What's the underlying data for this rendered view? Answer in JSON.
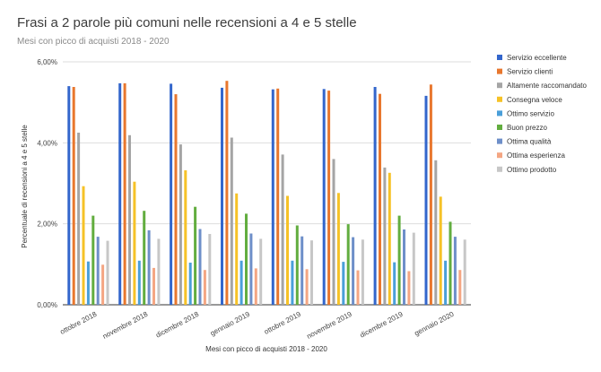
{
  "chart_data": {
    "type": "bar",
    "title": "Frasi a 2 parole più comuni nelle recensioni a 4 e 5 stelle",
    "subtitle": "Mesi con picco di acquisti 2018 - 2020",
    "xlabel": "Mesi con picco di acquisti 2018 - 2020",
    "ylabel": "Percentuale di recensioni a 4 e 5 stelle",
    "ylim": [
      0,
      6
    ],
    "yticks": [
      "0,00%",
      "2,00%",
      "4,00%",
      "6,00%"
    ],
    "grid": true,
    "legend_position": "right",
    "categories": [
      "ottobre 2018",
      "novembre 2018",
      "dicembre 2018",
      "gennaio 2019",
      "ottobre 2019",
      "novembre 2019",
      "dicembre 2019",
      "gennaio 2020"
    ],
    "series": [
      {
        "name": "Servizio eccellente",
        "color": "#3366cc",
        "values": [
          5.4,
          5.47,
          5.46,
          5.36,
          5.32,
          5.33,
          5.38,
          5.16
        ]
      },
      {
        "name": "Servizio clienti",
        "color": "#e8772e",
        "values": [
          5.38,
          5.47,
          5.2,
          5.53,
          5.34,
          5.29,
          5.21,
          5.44
        ]
      },
      {
        "name": "Altamente raccomandato",
        "color": "#a5a5a5",
        "values": [
          4.25,
          4.19,
          3.96,
          4.13,
          3.71,
          3.6,
          3.39,
          3.57
        ]
      },
      {
        "name": "Consegna veloce",
        "color": "#f6c227",
        "values": [
          2.93,
          3.04,
          3.32,
          2.75,
          2.69,
          2.76,
          3.26,
          2.67
        ]
      },
      {
        "name": "Ottimo servizio",
        "color": "#4a9fd9",
        "values": [
          1.07,
          1.09,
          1.04,
          1.09,
          1.09,
          1.06,
          1.05,
          1.09
        ]
      },
      {
        "name": "Buon prezzo",
        "color": "#62ad3f",
        "values": [
          2.2,
          2.32,
          2.42,
          2.25,
          1.96,
          1.99,
          2.2,
          2.05
        ]
      },
      {
        "name": "Ottima qualità",
        "color": "#6e8fc9",
        "values": [
          1.68,
          1.84,
          1.87,
          1.76,
          1.69,
          1.67,
          1.86,
          1.68
        ]
      },
      {
        "name": "Ottima esperienza",
        "color": "#f4a683",
        "values": [
          0.99,
          0.91,
          0.86,
          0.9,
          0.88,
          0.85,
          0.83,
          0.86
        ]
      },
      {
        "name": "Ottimo prodotto",
        "color": "#c7c7c7",
        "values": [
          1.58,
          1.63,
          1.75,
          1.63,
          1.59,
          1.61,
          1.78,
          1.61
        ]
      }
    ]
  }
}
